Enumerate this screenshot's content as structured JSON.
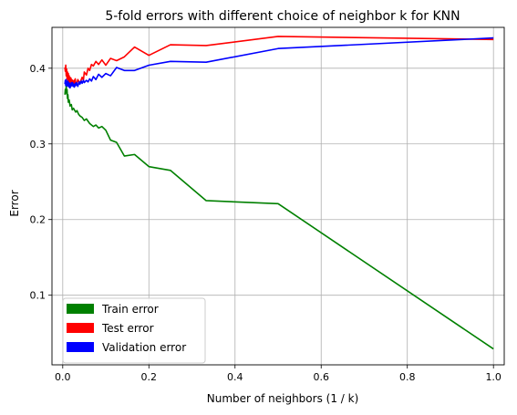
{
  "chart_data": {
    "type": "line",
    "title": "5-fold errors with different choice of neighbor k for KNN",
    "xlabel": "Number of neighbors (1 / k)",
    "ylabel": "Error",
    "xlim": [
      -0.025,
      1.025
    ],
    "ylim": [
      0.008,
      0.454
    ],
    "grid": true,
    "legend_placement": "lower-left",
    "xticks": [
      0.0,
      0.2,
      0.4,
      0.6,
      0.8,
      1.0
    ],
    "xtick_labels": [
      "0.0",
      "0.2",
      "0.4",
      "0.6",
      "0.8",
      "1.0"
    ],
    "yticks": [
      0.1,
      0.2,
      0.3,
      0.4
    ],
    "ytick_labels": [
      "0.1",
      "0.2",
      "0.3",
      "0.4"
    ],
    "series": [
      {
        "name": "Train error",
        "color": "#008000",
        "x": [
          0.005,
          0.006,
          0.007,
          0.008,
          0.009,
          0.01,
          0.011,
          0.012,
          0.013,
          0.015,
          0.017,
          0.02,
          0.022,
          0.025,
          0.03,
          0.033,
          0.037,
          0.04,
          0.045,
          0.05,
          0.055,
          0.0625,
          0.071,
          0.0769,
          0.0833,
          0.0909,
          0.1,
          0.111,
          0.125,
          0.143,
          0.1667,
          0.2,
          0.25,
          0.333,
          0.5,
          1.0
        ],
        "y": [
          0.365,
          0.372,
          0.368,
          0.376,
          0.366,
          0.372,
          0.36,
          0.365,
          0.355,
          0.358,
          0.35,
          0.352,
          0.345,
          0.347,
          0.342,
          0.344,
          0.339,
          0.337,
          0.335,
          0.331,
          0.333,
          0.327,
          0.323,
          0.325,
          0.321,
          0.323,
          0.318,
          0.305,
          0.302,
          0.284,
          0.286,
          0.27,
          0.265,
          0.225,
          0.221,
          0.029
        ]
      },
      {
        "name": "Test error",
        "color": "#ff0000",
        "x": [
          0.005,
          0.006,
          0.007,
          0.008,
          0.009,
          0.01,
          0.011,
          0.012,
          0.013,
          0.014,
          0.015,
          0.016,
          0.017,
          0.018,
          0.019,
          0.02,
          0.021,
          0.022,
          0.023,
          0.024,
          0.025,
          0.026,
          0.027,
          0.028,
          0.029,
          0.03,
          0.032,
          0.035,
          0.038,
          0.04,
          0.043,
          0.045,
          0.048,
          0.05,
          0.055,
          0.0588,
          0.0625,
          0.0667,
          0.071,
          0.0769,
          0.0833,
          0.0909,
          0.1,
          0.111,
          0.125,
          0.143,
          0.1667,
          0.2,
          0.25,
          0.333,
          0.5,
          1.0
        ],
        "y": [
          0.401,
          0.396,
          0.404,
          0.39,
          0.399,
          0.386,
          0.395,
          0.383,
          0.393,
          0.381,
          0.39,
          0.379,
          0.388,
          0.381,
          0.387,
          0.378,
          0.385,
          0.378,
          0.384,
          0.38,
          0.383,
          0.376,
          0.384,
          0.379,
          0.386,
          0.381,
          0.378,
          0.385,
          0.382,
          0.38,
          0.385,
          0.388,
          0.384,
          0.395,
          0.391,
          0.4,
          0.397,
          0.405,
          0.403,
          0.409,
          0.405,
          0.411,
          0.404,
          0.413,
          0.41,
          0.415,
          0.428,
          0.417,
          0.431,
          0.43,
          0.442,
          0.438
        ]
      },
      {
        "name": "Validation error",
        "color": "#0000ff",
        "x": [
          0.005,
          0.006,
          0.007,
          0.008,
          0.009,
          0.01,
          0.011,
          0.012,
          0.013,
          0.014,
          0.015,
          0.016,
          0.017,
          0.018,
          0.019,
          0.02,
          0.021,
          0.022,
          0.023,
          0.024,
          0.025,
          0.027,
          0.029,
          0.03,
          0.032,
          0.035,
          0.038,
          0.04,
          0.043,
          0.045,
          0.048,
          0.05,
          0.055,
          0.0588,
          0.0625,
          0.0667,
          0.071,
          0.0769,
          0.0833,
          0.0909,
          0.1,
          0.111,
          0.125,
          0.143,
          0.1667,
          0.2,
          0.25,
          0.333,
          0.5,
          1.0
        ],
        "y": [
          0.379,
          0.384,
          0.377,
          0.385,
          0.378,
          0.382,
          0.376,
          0.383,
          0.377,
          0.381,
          0.375,
          0.38,
          0.374,
          0.379,
          0.376,
          0.381,
          0.377,
          0.378,
          0.381,
          0.376,
          0.379,
          0.375,
          0.38,
          0.377,
          0.381,
          0.376,
          0.382,
          0.379,
          0.383,
          0.38,
          0.384,
          0.381,
          0.384,
          0.382,
          0.386,
          0.383,
          0.389,
          0.385,
          0.392,
          0.388,
          0.393,
          0.39,
          0.401,
          0.397,
          0.397,
          0.404,
          0.409,
          0.408,
          0.426,
          0.44
        ]
      }
    ]
  }
}
